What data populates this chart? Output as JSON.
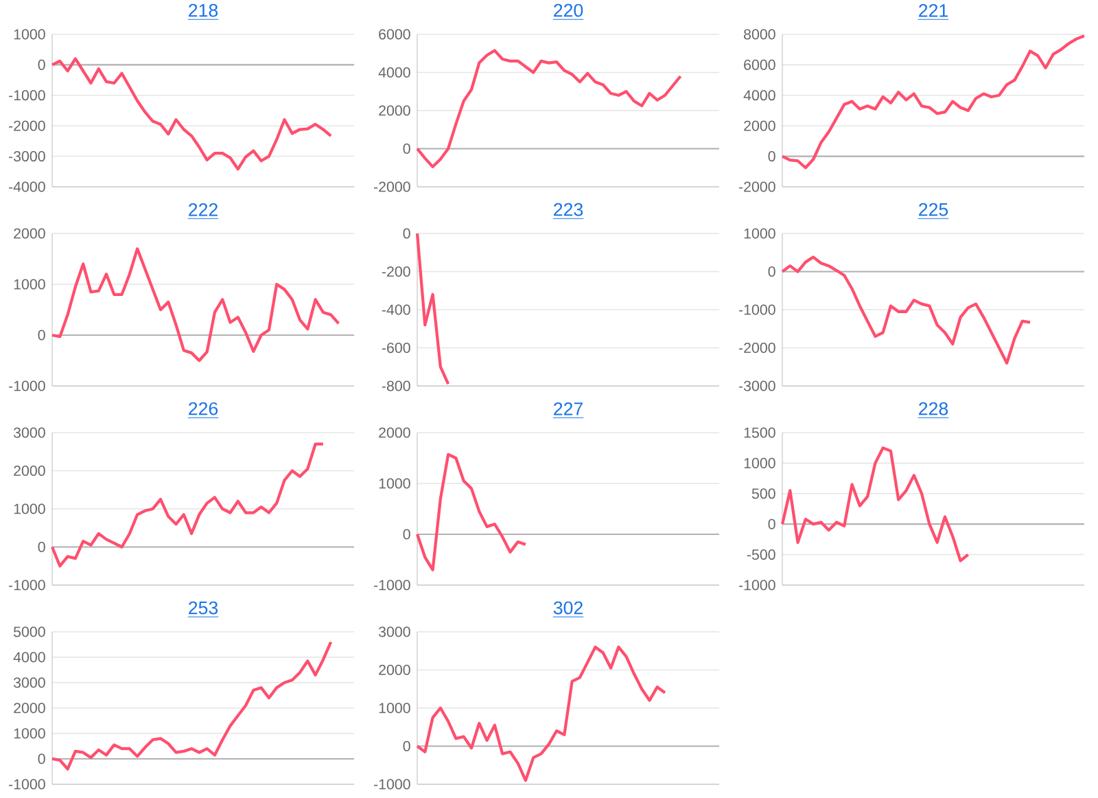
{
  "chart_data": [
    {
      "type": "line",
      "title": "218",
      "categories": [
        null,
        null,
        null,
        null,
        null,
        null,
        null,
        null,
        null,
        null,
        null,
        null,
        null,
        null,
        null,
        null,
        null,
        null,
        null,
        null,
        null,
        null,
        null,
        null,
        null,
        null,
        null,
        null,
        null,
        null,
        null,
        null,
        null,
        null,
        null,
        null,
        null,
        null,
        null,
        null
      ],
      "values": [
        0,
        120,
        -200,
        200,
        -200,
        -600,
        -130,
        -550,
        -600,
        -280,
        -730,
        -1180,
        -1550,
        -1850,
        -1950,
        -2270,
        -1800,
        -2120,
        -2330,
        -2700,
        -3120,
        -2900,
        -2900,
        -3050,
        -3420,
        -3020,
        -2820,
        -3150,
        -3000,
        -2450,
        -1800,
        -2250,
        -2120,
        -2100,
        -1950,
        -2120,
        -2330,
        null,
        null,
        null
      ],
      "color": "#ff4f6e",
      "ylim": [
        -4000,
        1000
      ],
      "yticks": [
        -4000,
        -3000,
        -2000,
        -1000,
        0,
        1000
      ],
      "grid": "y",
      "tick_labels": "y",
      "marker": "none",
      "line_style": "solid"
    },
    {
      "type": "line",
      "title": "220",
      "categories": [
        null,
        null,
        null,
        null,
        null,
        null,
        null,
        null,
        null,
        null,
        null,
        null,
        null,
        null,
        null,
        null,
        null,
        null,
        null,
        null,
        null,
        null,
        null,
        null,
        null,
        null,
        null,
        null,
        null,
        null,
        null,
        null,
        null,
        null,
        null,
        null,
        null,
        null,
        null,
        null
      ],
      "values": [
        0,
        -500,
        -950,
        -550,
        0,
        1300,
        2500,
        3100,
        4500,
        4900,
        5150,
        4700,
        4600,
        4600,
        4300,
        4000,
        4600,
        4500,
        4550,
        4100,
        3900,
        3500,
        3950,
        3500,
        3350,
        2900,
        2800,
        3000,
        2500,
        2250,
        2900,
        2550,
        2800,
        3300,
        3800,
        null,
        null,
        null,
        null,
        null
      ],
      "color": "#ff4f6e",
      "ylim": [
        -2000,
        6000
      ],
      "yticks": [
        -2000,
        0,
        2000,
        4000,
        6000
      ],
      "grid": "y",
      "tick_labels": "y",
      "marker": "none",
      "line_style": "solid"
    },
    {
      "type": "line",
      "title": "221",
      "categories": [
        null,
        null,
        null,
        null,
        null,
        null,
        null,
        null,
        null,
        null,
        null,
        null,
        null,
        null,
        null,
        null,
        null,
        null,
        null,
        null,
        null,
        null,
        null,
        null,
        null,
        null,
        null,
        null,
        null,
        null,
        null,
        null,
        null,
        null,
        null,
        null,
        null,
        null,
        null,
        null
      ],
      "values": [
        0,
        -250,
        -300,
        -750,
        -200,
        900,
        1600,
        2500,
        3400,
        3600,
        3100,
        3300,
        3100,
        3900,
        3500,
        4200,
        3700,
        4100,
        3300,
        3200,
        2800,
        2900,
        3600,
        3200,
        3000,
        3800,
        4100,
        3900,
        4000,
        4700,
        5000,
        5900,
        6900,
        6600,
        5800,
        6700,
        7000,
        7400,
        7700,
        7900
      ],
      "color": "#ff4f6e",
      "ylim": [
        -2000,
        8000
      ],
      "yticks": [
        -2000,
        0,
        2000,
        4000,
        6000,
        8000
      ],
      "grid": "y",
      "tick_labels": "y",
      "marker": "none",
      "line_style": "solid"
    },
    {
      "type": "line",
      "title": "222",
      "categories": [
        null,
        null,
        null,
        null,
        null,
        null,
        null,
        null,
        null,
        null,
        null,
        null,
        null,
        null,
        null,
        null,
        null,
        null,
        null,
        null,
        null,
        null,
        null,
        null,
        null,
        null,
        null,
        null,
        null,
        null,
        null,
        null,
        null,
        null,
        null,
        null,
        null,
        null,
        null,
        null
      ],
      "values": [
        0,
        -30,
        400,
        950,
        1400,
        850,
        870,
        1200,
        800,
        800,
        1200,
        1700,
        1300,
        900,
        500,
        650,
        200,
        -300,
        -350,
        -500,
        -330,
        450,
        700,
        250,
        350,
        50,
        -320,
        0,
        100,
        1000,
        900,
        700,
        300,
        120,
        700,
        450,
        400,
        230,
        null,
        null
      ],
      "color": "#ff4f6e",
      "ylim": [
        -1000,
        2000
      ],
      "yticks": [
        -1000,
        0,
        1000,
        2000
      ],
      "grid": "y",
      "tick_labels": "y",
      "marker": "none",
      "line_style": "solid"
    },
    {
      "type": "line",
      "title": "223",
      "categories": [
        null,
        null,
        null,
        null,
        null,
        null,
        null,
        null,
        null,
        null,
        null,
        null,
        null,
        null,
        null,
        null,
        null,
        null,
        null,
        null,
        null,
        null,
        null,
        null,
        null,
        null,
        null,
        null,
        null,
        null,
        null,
        null,
        null,
        null,
        null,
        null,
        null,
        null,
        null,
        null
      ],
      "values": [
        0,
        -480,
        -320,
        -700,
        -790,
        null,
        null,
        null,
        null,
        null,
        null,
        null,
        null,
        null,
        null,
        null,
        null,
        null,
        null,
        null,
        null,
        null,
        null,
        null,
        null,
        null,
        null,
        null,
        null,
        null,
        null,
        null,
        null,
        null,
        null,
        null,
        null,
        null,
        null,
        null
      ],
      "color": "#ff4f6e",
      "ylim": [
        -800,
        0
      ],
      "yticks": [
        -800,
        -600,
        -400,
        -200,
        0
      ],
      "grid": "y",
      "tick_labels": "y",
      "marker": "none",
      "line_style": "solid"
    },
    {
      "type": "line",
      "title": "225",
      "categories": [
        null,
        null,
        null,
        null,
        null,
        null,
        null,
        null,
        null,
        null,
        null,
        null,
        null,
        null,
        null,
        null,
        null,
        null,
        null,
        null,
        null,
        null,
        null,
        null,
        null,
        null,
        null,
        null,
        null,
        null,
        null,
        null,
        null,
        null,
        null,
        null,
        null,
        null,
        null,
        null
      ],
      "values": [
        0,
        150,
        0,
        250,
        380,
        220,
        150,
        30,
        -100,
        -450,
        -900,
        -1300,
        -1700,
        -1600,
        -900,
        -1050,
        -1050,
        -750,
        -850,
        -900,
        -1400,
        -1600,
        -1900,
        -1200,
        -950,
        -850,
        -1200,
        -1600,
        -2000,
        -2400,
        -1750,
        -1300,
        -1330,
        null,
        null,
        null,
        null,
        null,
        null,
        null
      ],
      "color": "#ff4f6e",
      "ylim": [
        -3000,
        1000
      ],
      "yticks": [
        -3000,
        -2000,
        -1000,
        0,
        1000
      ],
      "grid": "y",
      "tick_labels": "y",
      "marker": "none",
      "line_style": "solid"
    },
    {
      "type": "line",
      "title": "226",
      "categories": [
        null,
        null,
        null,
        null,
        null,
        null,
        null,
        null,
        null,
        null,
        null,
        null,
        null,
        null,
        null,
        null,
        null,
        null,
        null,
        null,
        null,
        null,
        null,
        null,
        null,
        null,
        null,
        null,
        null,
        null,
        null,
        null,
        null,
        null,
        null,
        null,
        null,
        null,
        null,
        null
      ],
      "values": [
        0,
        -500,
        -250,
        -300,
        150,
        50,
        350,
        200,
        100,
        0,
        350,
        850,
        950,
        1000,
        1250,
        800,
        600,
        850,
        350,
        850,
        1150,
        1300,
        1000,
        900,
        1200,
        900,
        900,
        1050,
        900,
        1150,
        1750,
        2000,
        1850,
        2050,
        2700,
        2700,
        null,
        null,
        null,
        null
      ],
      "color": "#ff4f6e",
      "ylim": [
        -1000,
        3000
      ],
      "yticks": [
        -1000,
        0,
        1000,
        2000,
        3000
      ],
      "grid": "y",
      "tick_labels": "y",
      "marker": "none",
      "line_style": "solid"
    },
    {
      "type": "line",
      "title": "227",
      "categories": [
        null,
        null,
        null,
        null,
        null,
        null,
        null,
        null,
        null,
        null,
        null,
        null,
        null,
        null,
        null,
        null,
        null,
        null,
        null,
        null,
        null,
        null,
        null,
        null,
        null,
        null,
        null,
        null,
        null,
        null,
        null,
        null,
        null,
        null,
        null,
        null,
        null,
        null,
        null,
        null
      ],
      "values": [
        0,
        -450,
        -700,
        700,
        1570,
        1500,
        1050,
        900,
        450,
        150,
        200,
        -50,
        -350,
        -150,
        -200,
        null,
        null,
        null,
        null,
        null,
        null,
        null,
        null,
        null,
        null,
        null,
        null,
        null,
        null,
        null,
        null,
        null,
        null,
        null,
        null,
        null,
        null,
        null,
        null,
        null
      ],
      "color": "#ff4f6e",
      "ylim": [
        -1000,
        2000
      ],
      "yticks": [
        -1000,
        0,
        1000,
        2000
      ],
      "grid": "y",
      "tick_labels": "y",
      "marker": "none",
      "line_style": "solid"
    },
    {
      "type": "line",
      "title": "228",
      "categories": [
        null,
        null,
        null,
        null,
        null,
        null,
        null,
        null,
        null,
        null,
        null,
        null,
        null,
        null,
        null,
        null,
        null,
        null,
        null,
        null,
        null,
        null,
        null,
        null,
        null,
        null,
        null,
        null,
        null,
        null,
        null,
        null,
        null,
        null,
        null,
        null,
        null,
        null,
        null,
        null
      ],
      "values": [
        0,
        550,
        -300,
        80,
        0,
        30,
        -100,
        30,
        -30,
        650,
        300,
        450,
        1000,
        1250,
        1200,
        400,
        550,
        800,
        500,
        0,
        -300,
        120,
        -200,
        -600,
        -500,
        null,
        null,
        null,
        null,
        null,
        null,
        null,
        null,
        null,
        null,
        null,
        null,
        null,
        null,
        null
      ],
      "color": "#ff4f6e",
      "ylim": [
        -1000,
        1500
      ],
      "yticks": [
        -1000,
        -500,
        0,
        500,
        1000,
        1500
      ],
      "grid": "y",
      "tick_labels": "y",
      "marker": "none",
      "line_style": "solid"
    },
    {
      "type": "line",
      "title": "253",
      "categories": [
        null,
        null,
        null,
        null,
        null,
        null,
        null,
        null,
        null,
        null,
        null,
        null,
        null,
        null,
        null,
        null,
        null,
        null,
        null,
        null,
        null,
        null,
        null,
        null,
        null,
        null,
        null,
        null,
        null,
        null,
        null,
        null,
        null,
        null,
        null,
        null,
        null,
        null,
        null,
        null
      ],
      "values": [
        0,
        -50,
        -400,
        300,
        250,
        50,
        350,
        150,
        550,
        400,
        400,
        100,
        450,
        750,
        800,
        600,
        250,
        300,
        400,
        250,
        400,
        150,
        750,
        1300,
        1700,
        2100,
        2700,
        2800,
        2400,
        2800,
        3000,
        3100,
        3400,
        3850,
        3300,
        3900,
        4600,
        null,
        null,
        null
      ],
      "color": "#ff4f6e",
      "ylim": [
        -1000,
        5000
      ],
      "yticks": [
        -1000,
        0,
        1000,
        2000,
        3000,
        4000,
        5000
      ],
      "grid": "y",
      "tick_labels": "y",
      "marker": "none",
      "line_style": "solid"
    },
    {
      "type": "line",
      "title": "302",
      "categories": [
        null,
        null,
        null,
        null,
        null,
        null,
        null,
        null,
        null,
        null,
        null,
        null,
        null,
        null,
        null,
        null,
        null,
        null,
        null,
        null,
        null,
        null,
        null,
        null,
        null,
        null,
        null,
        null,
        null,
        null,
        null,
        null,
        null,
        null,
        null,
        null,
        null,
        null,
        null,
        null
      ],
      "values": [
        0,
        -150,
        750,
        1000,
        650,
        200,
        250,
        -50,
        600,
        150,
        550,
        -200,
        -150,
        -450,
        -900,
        -300,
        -200,
        50,
        400,
        300,
        1700,
        1800,
        2200,
        2600,
        2450,
        2050,
        2600,
        2350,
        1900,
        1500,
        1200,
        1550,
        1400,
        null,
        null,
        null,
        null,
        null,
        null,
        null
      ],
      "color": "#ff4f6e",
      "ylim": [
        -1000,
        3000
      ],
      "yticks": [
        -1000,
        0,
        1000,
        2000,
        3000
      ],
      "grid": "y",
      "tick_labels": "y",
      "marker": "none",
      "line_style": "solid"
    }
  ]
}
